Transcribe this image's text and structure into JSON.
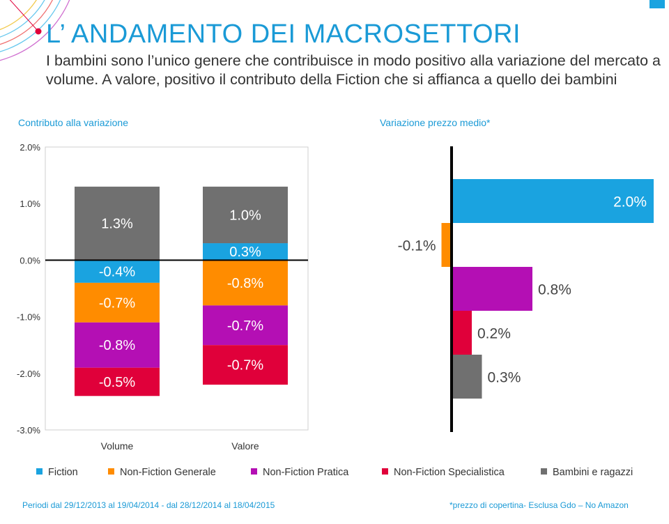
{
  "title": "L’ ANDAMENTO DEI MACROSETTORI",
  "subtitle": "I bambini sono l’unico genere che contribuisce in modo positivo alla variazione del mercato a volume. A valore, positivo il contributo della Fiction che si affianca a quello dei bambini",
  "colors": {
    "Fiction": "#1aa3e0",
    "Non-Fiction Generale": "#ff8c00",
    "Non-Fiction Pratica": "#b40fb4",
    "Non-Fiction Specialistica": "#e0003a",
    "Bambini e ragazzi": "#707070",
    "accent": "#1a9ad6"
  },
  "chart_data": [
    {
      "type": "bar",
      "stacked": true,
      "title": "Contributo alla variazione",
      "categories": [
        "Volume",
        "Valore"
      ],
      "ylim": [
        -3.0,
        2.0
      ],
      "yticks": [
        "2.0%",
        "1.0%",
        "0.0%",
        "-1.0%",
        "-2.0%",
        "-3.0%"
      ],
      "grid": false,
      "series": [
        {
          "name": "Fiction",
          "values": [
            -0.4,
            0.3
          ],
          "labels": [
            "-0.4%",
            "0.3%"
          ]
        },
        {
          "name": "Non-Fiction Generale",
          "values": [
            -0.7,
            -0.8
          ],
          "labels": [
            "-0.7%",
            "-0.8%"
          ]
        },
        {
          "name": "Non-Fiction Pratica",
          "values": [
            -0.8,
            -0.7
          ],
          "labels": [
            "-0.8%",
            "-0.7%"
          ]
        },
        {
          "name": "Non-Fiction Specialistica",
          "values": [
            -0.5,
            -0.7
          ],
          "labels": [
            "-0.5%",
            "-0.7%"
          ]
        },
        {
          "name": "Bambini e ragazzi",
          "values": [
            1.3,
            1.0
          ],
          "labels": [
            "1.3%",
            "1.0%"
          ]
        }
      ]
    },
    {
      "type": "bar",
      "orientation": "horizontal",
      "title": "Variazione prezzo medio*",
      "categories": [
        "Fiction",
        "Non-Fiction Generale",
        "Non-Fiction Pratica",
        "Non-Fiction Specialistica",
        "Bambini e ragazzi"
      ],
      "values": [
        2.0,
        -0.1,
        0.8,
        0.2,
        0.3
      ],
      "labels": [
        "2.0%",
        "-0.1%",
        "0.8%",
        "0.2%",
        "0.3%"
      ]
    }
  ],
  "legend": [
    "Fiction",
    "Non-Fiction Generale",
    "Non-Fiction Pratica",
    "Non-Fiction Specialistica",
    "Bambini e ragazzi"
  ],
  "footer": {
    "left": "Periodi dal 29/12/2013 al 19/04/2014  - dal 28/12/2014 al 18/04/2015",
    "right": "*prezzo di copertina- Esclusa Gdo – No Amazon"
  }
}
